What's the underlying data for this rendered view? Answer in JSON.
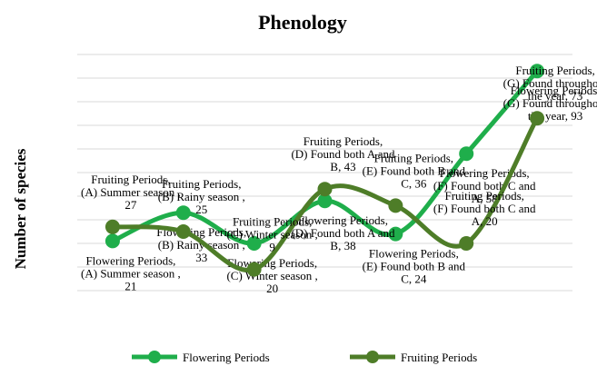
{
  "chart_data": {
    "type": "line",
    "title": "Phenology",
    "y_label": "Number of species",
    "categories": [
      "(A) Summer season",
      "(B) Rainy season",
      "(C) Winter season",
      "(D) Found both A and B",
      "(E) Found both B and C",
      "(F) Found both C and A",
      "(G) Found throughout the year"
    ],
    "ylim": [
      0,
      100
    ],
    "yticks": [
      0,
      10,
      20,
      30,
      40,
      50,
      60,
      70,
      80,
      90,
      100
    ],
    "grid": true,
    "legend": "bottom",
    "smooth": true,
    "series": [
      {
        "name": "Flowering Periods",
        "color": "#1fae4b",
        "values": [
          21,
          33,
          20,
          38,
          24,
          58,
          93
        ],
        "value_labels": [
          "Flowering Periods, (A) Summer season , 21",
          "Flowering Periods, (B) Rainy season , 33",
          "Flowering Periods, (C) Winter season , 20",
          "Flowering Periods, (D) Found both A and B, 38",
          "Flowering Periods, (E) Found both B and C, 24",
          "Flowering Periods, (F) Found both C and A, 58",
          "Flowering Periods, (G) Found throughout the year, 93"
        ]
      },
      {
        "name": "Fruiting Periods",
        "color": "#4e7d28",
        "values": [
          27,
          25,
          9,
          43,
          36,
          20,
          73
        ],
        "value_labels": [
          "Fruiting Periods, (A) Summer season , 27",
          "Fruiting Periods, (B) Rainy season , 25",
          "Fruiting Periods, (C) Winter season , 9",
          "Fruiting Periods, (D) Found both A and B, 43",
          "Fruiting Periods, (E) Found both B and C, 36",
          "Fruiting Periods, (F) Found both C and A, 20",
          "Fruiting Periods, (G) Found throughout the year, 73"
        ]
      }
    ]
  }
}
